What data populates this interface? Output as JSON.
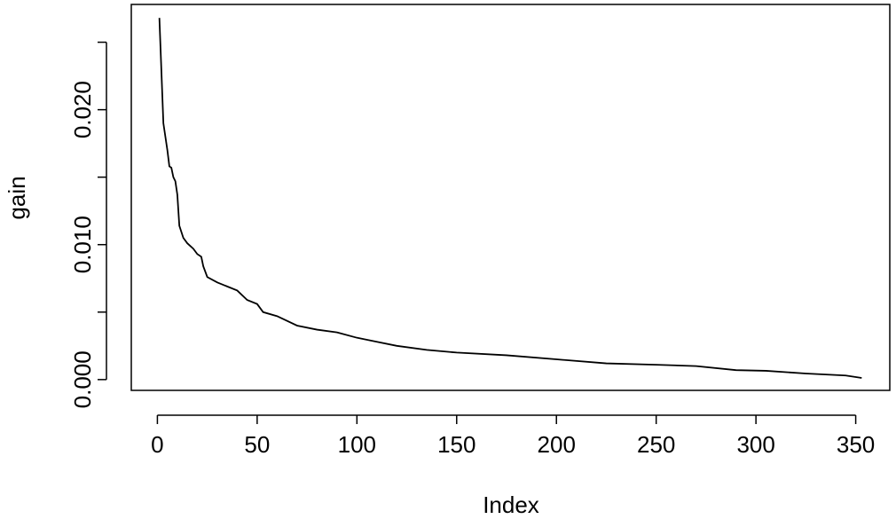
{
  "chart_data": {
    "type": "line",
    "x_label": "Index",
    "y_label": "gain",
    "x": [
      1,
      3,
      5,
      6,
      7,
      8,
      9,
      10,
      11,
      13,
      15,
      18,
      20,
      22,
      23,
      25,
      30,
      35,
      40,
      45,
      50,
      53,
      60,
      70,
      80,
      90,
      100,
      110,
      120,
      135,
      150,
      175,
      200,
      225,
      250,
      270,
      290,
      305,
      325,
      345,
      353
    ],
    "series": [
      {
        "name": "gain",
        "color": "#000000",
        "values": [
          0.0268,
          0.019,
          0.017,
          0.0158,
          0.0157,
          0.015,
          0.0147,
          0.0137,
          0.0114,
          0.0105,
          0.0101,
          0.0097,
          0.0093,
          0.0091,
          0.0084,
          0.0076,
          0.0072,
          0.0069,
          0.0066,
          0.0059,
          0.0056,
          0.005,
          0.0047,
          0.004,
          0.0037,
          0.0035,
          0.0031,
          0.0028,
          0.0025,
          0.0022,
          0.002,
          0.0018,
          0.0015,
          0.0012,
          0.0011,
          0.001,
          0.0007,
          0.00065,
          0.00045,
          0.0003,
          0.00012
        ]
      }
    ],
    "xlim": [
      -13.08,
      367.08
    ],
    "ylim": [
      -0.0008,
      0.0278
    ],
    "xticks": [
      0,
      50,
      100,
      150,
      200,
      250,
      300,
      350
    ],
    "yticks": [
      {
        "value": 0,
        "label": "0.000"
      },
      {
        "value": 0.01,
        "label": "0.010"
      },
      {
        "value": 0.02,
        "label": "0.020"
      }
    ],
    "yminor_ticks": [
      0.005,
      0.015,
      0.025
    ]
  }
}
